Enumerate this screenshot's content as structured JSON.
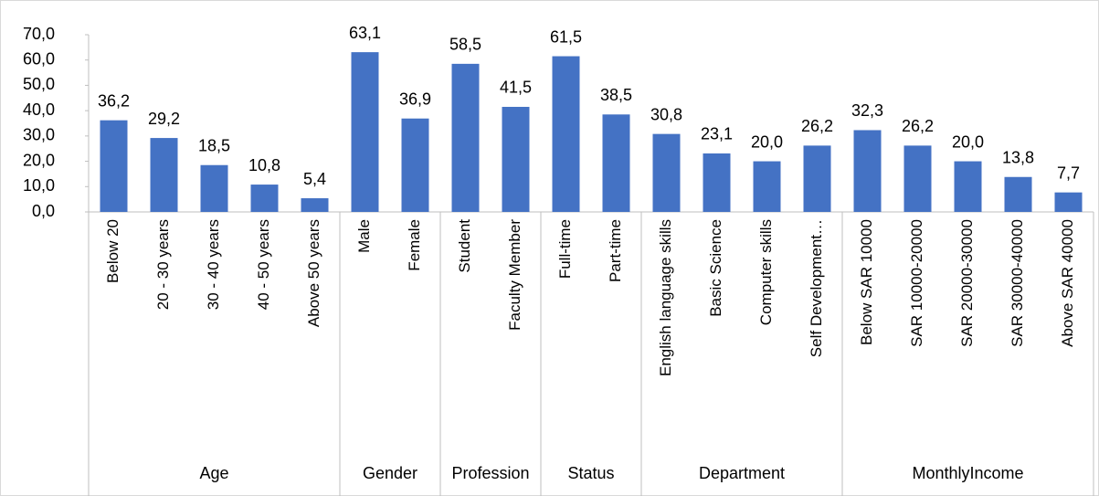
{
  "chart_data": {
    "type": "bar",
    "color": "#4472c4",
    "ylim": [
      0,
      70
    ],
    "yticks": [
      {
        "value": 0,
        "label": "0,0"
      },
      {
        "value": 10,
        "label": "10,0"
      },
      {
        "value": 20,
        "label": "20,0"
      },
      {
        "value": 30,
        "label": "30,0"
      },
      {
        "value": 40,
        "label": "40,0"
      },
      {
        "value": 50,
        "label": "50,0"
      },
      {
        "value": 60,
        "label": "60,0"
      },
      {
        "value": 70,
        "label": "70,0"
      }
    ],
    "groups": [
      {
        "name": "Age",
        "categories": [
          "Below 20",
          "20 - 30 years",
          "30 - 40 years",
          "40 - 50 years",
          "Above 50 years"
        ],
        "values": [
          36.2,
          29.2,
          18.5,
          10.8,
          5.4
        ],
        "value_labels": [
          "36,2",
          "29,2",
          "18,5",
          "10,8",
          "5,4"
        ]
      },
      {
        "name": "Gender",
        "categories": [
          "Male",
          "Female"
        ],
        "values": [
          63.1,
          36.9
        ],
        "value_labels": [
          "63,1",
          "36,9"
        ]
      },
      {
        "name": "Profession",
        "categories": [
          "Student",
          "Faculty Member"
        ],
        "values": [
          58.5,
          41.5
        ],
        "value_labels": [
          "58,5",
          "41,5"
        ]
      },
      {
        "name": "Status",
        "categories": [
          "Full-time",
          "Part-time"
        ],
        "values": [
          61.5,
          38.5
        ],
        "value_labels": [
          "61,5",
          "38,5"
        ]
      },
      {
        "name": "Department",
        "categories": [
          "English language skills",
          "Basic Science",
          "Computer skills",
          "Self Development…"
        ],
        "values": [
          30.8,
          23.1,
          20.0,
          26.2
        ],
        "value_labels": [
          "30,8",
          "23,1",
          "20,0",
          "26,2"
        ]
      },
      {
        "name": "MonthlyIncome",
        "categories": [
          "Below SAR 10000",
          "SAR 10000-20000",
          "SAR 20000-30000",
          "SAR 30000-40000",
          "Above SAR 40000"
        ],
        "values": [
          32.3,
          26.2,
          20.0,
          13.8,
          7.7
        ],
        "value_labels": [
          "32,3",
          "26,2",
          "20,0",
          "13,8",
          "7,7"
        ]
      }
    ]
  }
}
